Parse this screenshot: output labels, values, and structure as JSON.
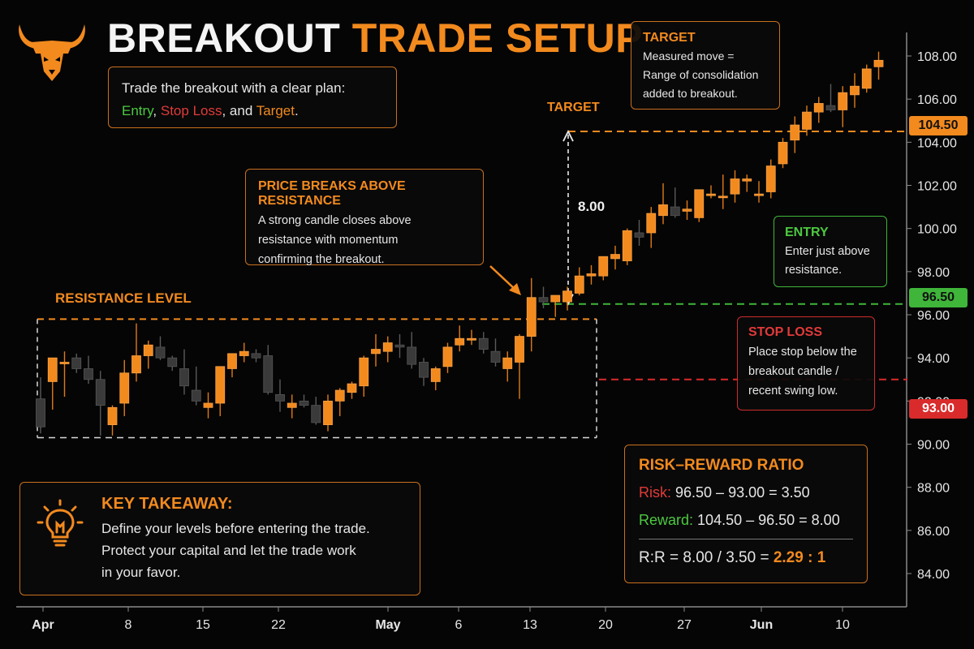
{
  "header": {
    "title_part1": "BREAKOUT",
    "title_part2": "TRADE SETUP"
  },
  "plan_box": {
    "line1": "Trade the breakout with a clear plan:",
    "entry": "Entry",
    "sep1": ", ",
    "stop": "Stop Loss",
    "sep2": ", and ",
    "target": "Target",
    "end": "."
  },
  "target_box": {
    "title": "TARGET",
    "line1": "Measured move =",
    "line2": "Range of consolidation",
    "line3": "added to breakout."
  },
  "breakout_box": {
    "title": "PRICE BREAKS ABOVE RESISTANCE",
    "line1": "A strong candle closes above",
    "line2": "resistance with momentum",
    "line3": "confirming the breakout."
  },
  "entry_box": {
    "title": "ENTRY",
    "line1": "Enter just above",
    "line2": "resistance."
  },
  "stop_box": {
    "title": "STOP LOSS",
    "line1": "Place stop below the",
    "line2": "breakout candle /",
    "line3": "recent swing low."
  },
  "takeaway_box": {
    "title": "KEY TAKEAWAY:",
    "line1": "Define your levels before entering the trade.",
    "line2": "Protect your capital and let the trade work",
    "line3": "in your favor."
  },
  "rr_box": {
    "title": "RISK–REWARD RATIO",
    "risk_label": "Risk:",
    "risk_calc": "96.50 – 93.00 = 3.50",
    "reward_label": "Reward:",
    "reward_calc": "104.50 – 96.50 = 8.00",
    "ratio_calc": "R:R = 8.00 / 3.50 = ",
    "ratio_value": "2.29 : 1"
  },
  "labels": {
    "resistance": "RESISTANCE LEVEL",
    "target": "TARGET",
    "move": "8.00"
  },
  "price_tags": {
    "target": "104.50",
    "entry": "96.50",
    "stop": "93.00"
  },
  "colors": {
    "accent": "#f28a1e",
    "entry": "#3fb53a",
    "stop": "#d92b2b",
    "bull_candle": "#f28a1e",
    "bear_candle": "#3a3a3a",
    "background": "#050505"
  },
  "icons": [
    "bull-logo-icon",
    "lightbulb-icon",
    "arrow-icon"
  ],
  "chart_data": {
    "type": "candlestick",
    "y_axis_ticks": [
      "84.00",
      "86.00",
      "88.00",
      "90.00",
      "92.00",
      "94.00",
      "96.00",
      "98.00",
      "100.00",
      "102.00",
      "104.00",
      "106.00",
      "108.00"
    ],
    "x_axis_ticks": [
      "Apr",
      "8",
      "15",
      "22",
      "May",
      "6",
      "13",
      "20",
      "27",
      "Jun",
      "10"
    ],
    "ylim": [
      83,
      109
    ],
    "levels": {
      "resistance": 95.8,
      "consolidation_low": 90.3,
      "entry": 96.5,
      "stop_loss": 93.0,
      "target": 104.5
    },
    "grid": false,
    "candles": [
      [
        92.1,
        93.1,
        90.5,
        90.8
      ],
      [
        92.9,
        94.0,
        91.6,
        94.0
      ],
      [
        93.8,
        94.3,
        92.2,
        93.8
      ],
      [
        94.0,
        94.2,
        93.3,
        93.5
      ],
      [
        93.5,
        94.1,
        92.8,
        93.0
      ],
      [
        93.0,
        93.4,
        90.4,
        91.8
      ],
      [
        90.9,
        91.8,
        90.4,
        91.7
      ],
      [
        91.9,
        93.9,
        91.3,
        93.3
      ],
      [
        93.3,
        95.6,
        92.9,
        94.1
      ],
      [
        94.1,
        94.8,
        93.5,
        94.6
      ],
      [
        94.5,
        95.0,
        93.9,
        94.0
      ],
      [
        94.0,
        94.1,
        93.4,
        93.6
      ],
      [
        93.5,
        94.4,
        92.3,
        92.7
      ],
      [
        92.5,
        93.6,
        91.8,
        92.0
      ],
      [
        91.7,
        92.4,
        91.2,
        91.9
      ],
      [
        91.9,
        93.6,
        91.3,
        93.6
      ],
      [
        93.5,
        94.2,
        93.1,
        94.2
      ],
      [
        94.1,
        94.7,
        93.8,
        94.3
      ],
      [
        94.2,
        94.4,
        93.8,
        94.0
      ],
      [
        94.1,
        94.6,
        92.3,
        92.4
      ],
      [
        92.3,
        93.0,
        91.5,
        92.0
      ],
      [
        91.7,
        92.3,
        91.2,
        91.9
      ],
      [
        92.0,
        92.3,
        91.7,
        91.8
      ],
      [
        91.8,
        92.2,
        90.9,
        91.0
      ],
      [
        90.9,
        92.3,
        90.6,
        92.0
      ],
      [
        92.0,
        92.6,
        91.3,
        92.5
      ],
      [
        92.4,
        92.9,
        92.1,
        92.8
      ],
      [
        92.7,
        94.1,
        92.2,
        94.0
      ],
      [
        94.2,
        95.1,
        93.6,
        94.4
      ],
      [
        94.3,
        95.0,
        93.8,
        94.7
      ],
      [
        94.6,
        95.1,
        94.0,
        94.5
      ],
      [
        94.5,
        95.2,
        93.5,
        93.7
      ],
      [
        93.8,
        94.0,
        92.7,
        93.1
      ],
      [
        92.9,
        93.6,
        92.5,
        93.5
      ],
      [
        93.6,
        94.7,
        93.3,
        94.5
      ],
      [
        94.6,
        95.5,
        94.3,
        94.9
      ],
      [
        94.9,
        95.3,
        94.6,
        94.9
      ],
      [
        94.9,
        95.2,
        94.2,
        94.4
      ],
      [
        94.3,
        94.9,
        93.6,
        93.8
      ],
      [
        93.5,
        94.3,
        92.9,
        94.0
      ],
      [
        93.8,
        95.1,
        92.1,
        95.0
      ],
      [
        95.0,
        97.7,
        94.3,
        96.8
      ],
      [
        96.8,
        97.3,
        96.3,
        96.6
      ],
      [
        96.6,
        96.9,
        95.9,
        96.9
      ],
      [
        96.6,
        97.3,
        96.2,
        97.1
      ],
      [
        97.0,
        98.2,
        96.9,
        97.8
      ],
      [
        97.8,
        98.3,
        97.4,
        97.9
      ],
      [
        97.8,
        98.7,
        97.6,
        98.7
      ],
      [
        98.6,
        99.2,
        98.1,
        98.8
      ],
      [
        98.5,
        100.0,
        98.3,
        99.9
      ],
      [
        99.8,
        100.4,
        99.2,
        99.6
      ],
      [
        99.8,
        101.0,
        99.1,
        100.7
      ],
      [
        100.6,
        102.1,
        100.2,
        101.1
      ],
      [
        101.0,
        101.9,
        100.5,
        100.6
      ],
      [
        100.8,
        101.3,
        100.4,
        100.9
      ],
      [
        100.5,
        101.8,
        100.3,
        101.8
      ],
      [
        101.6,
        102.0,
        101.4,
        101.6
      ],
      [
        101.5,
        102.5,
        100.9,
        101.5
      ],
      [
        101.6,
        102.7,
        101.2,
        102.3
      ],
      [
        102.2,
        102.5,
        101.7,
        102.3
      ],
      [
        101.6,
        102.2,
        101.2,
        101.6
      ],
      [
        101.7,
        103.2,
        101.4,
        102.9
      ],
      [
        103.0,
        104.2,
        102.8,
        104.0
      ],
      [
        104.1,
        105.2,
        103.5,
        104.8
      ],
      [
        104.6,
        105.7,
        104.3,
        105.4
      ],
      [
        105.4,
        106.1,
        104.9,
        105.8
      ],
      [
        105.7,
        106.7,
        105.4,
        105.5
      ],
      [
        105.5,
        106.6,
        104.7,
        106.3
      ],
      [
        106.2,
        107.2,
        105.6,
        106.6
      ],
      [
        106.5,
        107.6,
        106.3,
        107.4
      ],
      [
        107.5,
        108.2,
        106.9,
        107.8
      ]
    ]
  }
}
